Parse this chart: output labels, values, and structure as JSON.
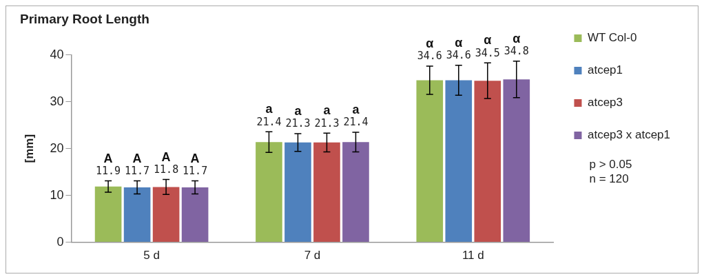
{
  "chart_data": {
    "type": "bar",
    "title": "Primary Root Length",
    "ylabel": "[mm]",
    "categories": [
      "5 d",
      "7 d",
      "11 d"
    ],
    "series": [
      {
        "name": "WT Col-0",
        "color": "#9bbb59",
        "values": [
          11.9,
          21.4,
          34.6
        ],
        "errors": [
          1.2,
          2.2,
          3.0
        ]
      },
      {
        "name": "atcep1",
        "color": "#4f81bd",
        "values": [
          11.7,
          21.3,
          34.6
        ],
        "errors": [
          1.4,
          1.9,
          3.2
        ]
      },
      {
        "name": "atcep3",
        "color": "#c0504d",
        "values": [
          11.8,
          21.3,
          34.5
        ],
        "errors": [
          1.6,
          2.0,
          3.8
        ]
      },
      {
        "name": "atcep3 x atcep1",
        "color": "#8064a2",
        "values": [
          11.7,
          21.4,
          34.8
        ],
        "errors": [
          1.4,
          2.1,
          3.9
        ]
      }
    ],
    "ylim": [
      0,
      40
    ],
    "yticks": [
      0,
      10,
      20,
      30,
      40
    ],
    "grid": false,
    "legend": "right",
    "data_labels": true,
    "annotations": [
      "A",
      "A",
      "A",
      "A",
      "a",
      "a",
      "a",
      "a",
      "α",
      "α",
      "α",
      "α",
      "p > 0.05",
      "n = 120"
    ]
  }
}
